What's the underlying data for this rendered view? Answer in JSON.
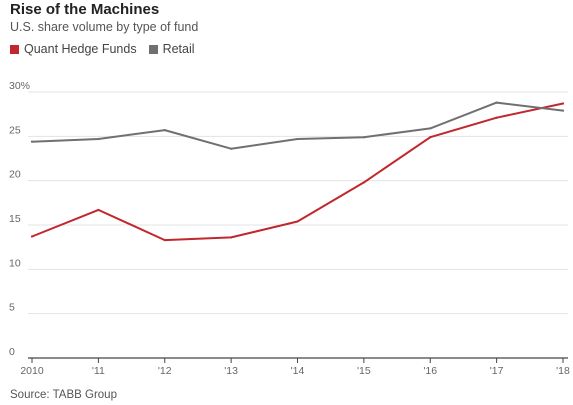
{
  "chart_data": {
    "type": "line",
    "title": "Rise of the Machines",
    "subtitle": "U.S. share volume by type of fund",
    "x": [
      "2010",
      "'11",
      "'12",
      "'13",
      "'14",
      "'15",
      "'16",
      "'17",
      "'18"
    ],
    "y_ticks": [
      "0",
      "5",
      "10",
      "15",
      "20",
      "25",
      "30%"
    ],
    "ylim": [
      0,
      30
    ],
    "grid": true,
    "legend_placement": "top-left",
    "series": [
      {
        "name": "Quant Hedge Funds",
        "color": "#c1272d",
        "values": [
          13.7,
          16.7,
          13.3,
          13.6,
          15.4,
          19.8,
          24.9,
          27.1,
          28.7
        ]
      },
      {
        "name": "Retail",
        "color": "#707070",
        "values": [
          24.4,
          24.7,
          25.7,
          23.6,
          24.7,
          24.9,
          25.9,
          28.8,
          27.9
        ]
      }
    ],
    "source": "Source: TABB Group"
  }
}
